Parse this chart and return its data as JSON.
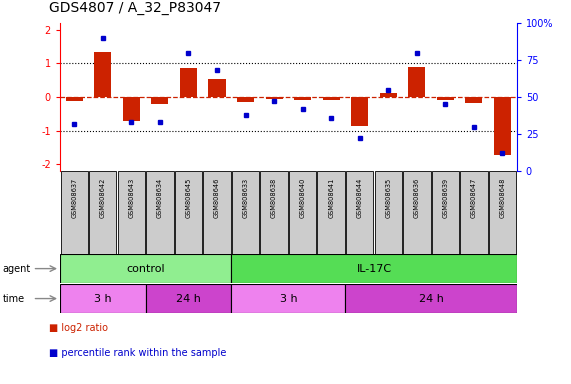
{
  "title": "GDS4807 / A_32_P83047",
  "samples": [
    "GSM808637",
    "GSM808642",
    "GSM808643",
    "GSM808634",
    "GSM808645",
    "GSM808646",
    "GSM808633",
    "GSM808638",
    "GSM808640",
    "GSM808641",
    "GSM808644",
    "GSM808635",
    "GSM808636",
    "GSM808639",
    "GSM808647",
    "GSM808648"
  ],
  "log2_ratio": [
    -0.12,
    1.35,
    -0.72,
    -0.22,
    0.85,
    0.52,
    -0.15,
    -0.05,
    -0.08,
    -0.08,
    -0.85,
    0.12,
    0.9,
    -0.08,
    -0.18,
    -1.72
  ],
  "percentile": [
    32,
    90,
    33,
    33,
    80,
    68,
    38,
    47,
    42,
    36,
    22,
    55,
    80,
    45,
    30,
    12
  ],
  "agent_groups": [
    {
      "label": "control",
      "start": 0,
      "end": 6,
      "color": "#90ee90"
    },
    {
      "label": "IL-17C",
      "start": 6,
      "end": 16,
      "color": "#55dd55"
    }
  ],
  "time_groups": [
    {
      "label": "3 h",
      "start": 0,
      "end": 3,
      "color": "#ee82ee"
    },
    {
      "label": "24 h",
      "start": 3,
      "end": 6,
      "color": "#cc44cc"
    },
    {
      "label": "3 h",
      "start": 6,
      "end": 10,
      "color": "#ee82ee"
    },
    {
      "label": "24 h",
      "start": 10,
      "end": 16,
      "color": "#cc44cc"
    }
  ],
  "bar_color": "#cc2200",
  "dot_color": "#0000cc",
  "ylim": [
    -2.2,
    2.2
  ],
  "yticks_left": [
    -2,
    -1,
    0,
    1,
    2
  ],
  "yticks_right": [
    0,
    25,
    50,
    75,
    100
  ],
  "background_color": "#ffffff",
  "sample_box_color": "#cccccc",
  "legend_items": [
    {
      "color": "#cc2200",
      "label": "log2 ratio"
    },
    {
      "color": "#0000cc",
      "label": "percentile rank within the sample"
    }
  ]
}
